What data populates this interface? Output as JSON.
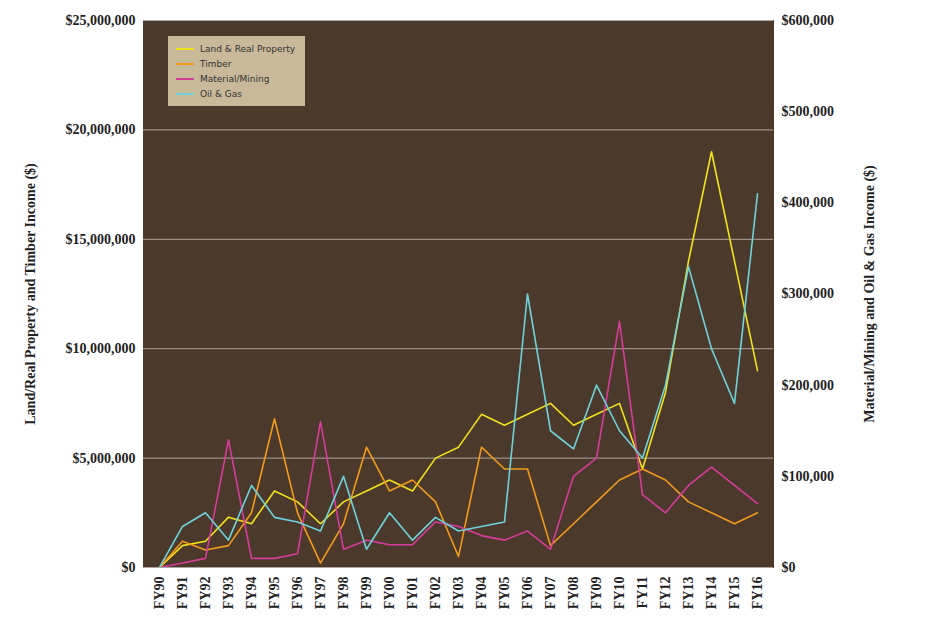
{
  "chart_data": {
    "type": "line",
    "y_label": "Land/Real Property and Timber Income ($)",
    "y2_label": "Material/Mining and Oil & Gas Income ($)",
    "categories": [
      "FY90",
      "FY91",
      "FY92",
      "FY93",
      "FY94",
      "FY95",
      "FY96",
      "FY97",
      "FY98",
      "FY99",
      "FY00",
      "FY01",
      "FY02",
      "FY03",
      "FY04",
      "FY05",
      "FY06",
      "FY07",
      "FY08",
      "FY09",
      "FY10",
      "FY11",
      "FY12",
      "FY13",
      "FY14",
      "FY15",
      "FY16"
    ],
    "series": [
      {
        "name": "Land & Real Property",
        "color": "#f2e21c",
        "values": [
          0,
          1000000,
          1200000,
          2300000,
          2000000,
          3500000,
          3000000,
          2000000,
          3000000,
          3500000,
          4000000,
          3500000,
          5000000,
          5500000,
          7000000,
          6500000,
          7000000,
          7500000,
          6500000,
          7000000,
          7500000,
          4500000,
          8000000,
          14000000,
          19000000,
          14000000,
          9000000
        ]
      },
      {
        "name": "Timber",
        "color": "#f29a1c",
        "values": [
          0,
          1200000,
          800000,
          1000000,
          2500000,
          6800000,
          2500000,
          200000,
          2000000,
          5500000,
          3500000,
          4000000,
          3000000,
          500000,
          5500000,
          4500000,
          4500000,
          1000000,
          2000000,
          3000000,
          4000000,
          4500000,
          4000000,
          3000000,
          2500000,
          2000000,
          2500000
        ]
      },
      {
        "name": "Material/Mining",
        "color": "#d63c9a",
        "axis": "y2",
        "values": [
          0,
          5000,
          10000,
          140000,
          10000,
          10000,
          15000,
          160000,
          20000,
          30000,
          25000,
          25000,
          50000,
          45000,
          35000,
          30000,
          40000,
          20000,
          100000,
          120000,
          270000,
          80000,
          60000,
          90000,
          110000,
          90000,
          70000
        ]
      },
      {
        "name": "Oil & Gas",
        "color": "#6fd3dc",
        "axis": "y2",
        "values": [
          0,
          45000,
          60000,
          30000,
          90000,
          55000,
          50000,
          40000,
          100000,
          20000,
          60000,
          30000,
          55000,
          40000,
          45000,
          50000,
          300000,
          150000,
          130000,
          200000,
          150000,
          120000,
          200000,
          330000,
          240000,
          180000,
          410000
        ]
      }
    ],
    "ylim": [
      0,
      25000000
    ],
    "yticks": [
      {
        "value": 0,
        "label": "$0"
      },
      {
        "value": 5000000,
        "label": "$5,000,000"
      },
      {
        "value": 10000000,
        "label": "$10,000,000"
      },
      {
        "value": 15000000,
        "label": "$15,000,000"
      },
      {
        "value": 20000000,
        "label": "$20,000,000"
      },
      {
        "value": 25000000,
        "label": "$25,000,000"
      }
    ],
    "y2lim": [
      0,
      600000
    ],
    "y2ticks": [
      {
        "value": 0,
        "label": "$0"
      },
      {
        "value": 100000,
        "label": "$100,000"
      },
      {
        "value": 200000,
        "label": "$200,000"
      },
      {
        "value": 300000,
        "label": "$300,000"
      },
      {
        "value": 400000,
        "label": "$400,000"
      },
      {
        "value": 500000,
        "label": "$500,000"
      },
      {
        "value": 600000,
        "label": "$600,000"
      }
    ],
    "grid": true,
    "legend": "top-left"
  }
}
